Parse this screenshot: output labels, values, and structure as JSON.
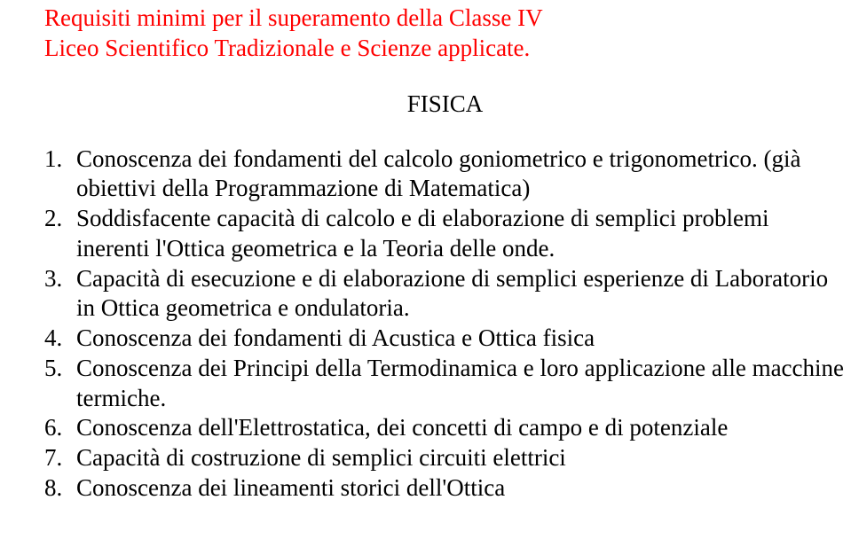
{
  "title": {
    "line1": "Requisiti minimi per il superamento della Classe IV",
    "line2": "Liceo Scientifico Tradizionale e Scienze applicate.",
    "color": "#ff0000",
    "font_size_pt": 20
  },
  "section_heading": {
    "text": "FISICA",
    "color": "#000000",
    "font_size_pt": 20
  },
  "list": {
    "items": [
      "Conoscenza dei fondamenti del calcolo goniometrico e trigonometrico. (già obiettivi della Programmazione di Matematica)",
      "Soddisfacente capacità di calcolo e di elaborazione di semplici problemi inerenti l'Ottica geometrica e la Teoria delle onde.",
      "Capacità di esecuzione e di elaborazione di semplici esperienze di Laboratorio in Ottica geometrica e ondulatoria.",
      "Conoscenza dei fondamenti di Acustica e Ottica fisica",
      "Conoscenza dei Principi della Termodinamica e loro applicazione alle macchine termiche.",
      "Conoscenza dell'Elettrostatica, dei concetti di campo e di potenziale",
      "Capacità di costruzione di semplici circuiti elettrici",
      "Conoscenza dei lineamenti storici dell'Ottica"
    ],
    "color": "#000000",
    "font_size_pt": 20
  },
  "background_color": "#ffffff",
  "font_family": "Times New Roman"
}
